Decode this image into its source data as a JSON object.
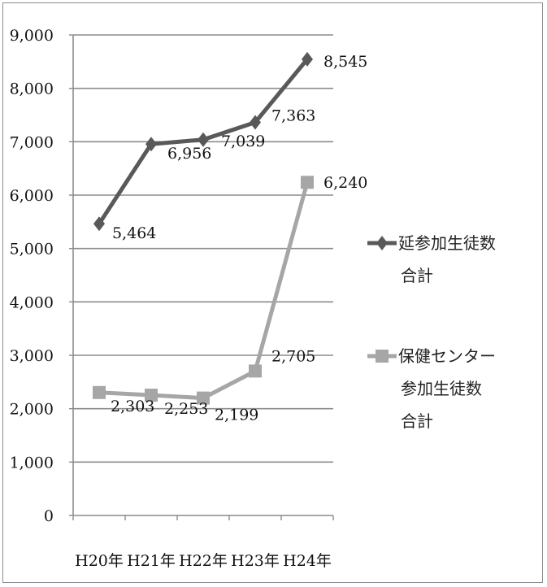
{
  "chart_data": {
    "type": "line",
    "categories": [
      "H20年",
      "H21年",
      "H22年",
      "H23年",
      "H24年"
    ],
    "ylim": [
      0,
      9000
    ],
    "yticks": [
      "0",
      "1,000",
      "2,000",
      "3,000",
      "4,000",
      "5,000",
      "6,000",
      "7,000",
      "8,000",
      "9,000"
    ],
    "grid": true,
    "legend_position": "right",
    "series": [
      {
        "name": "延参加生徒数合計",
        "legend_lines": [
          "延参加生徒数",
          "合計"
        ],
        "color": "#595959",
        "marker": "diamond",
        "values": [
          5464,
          6956,
          7039,
          7363,
          8545
        ],
        "labels": [
          "5,464",
          "6,956",
          "7,039",
          "7,363",
          "8,545"
        ]
      },
      {
        "name": "保健センター参加生徒数合計",
        "legend_lines": [
          "保健センター",
          "参加生徒数",
          "合計"
        ],
        "color": "#a6a6a6",
        "marker": "square",
        "values": [
          2303,
          2253,
          2199,
          2705,
          6240
        ],
        "labels": [
          "2,303",
          "2,253",
          "2,199",
          "2,705",
          "6,240"
        ]
      }
    ]
  }
}
